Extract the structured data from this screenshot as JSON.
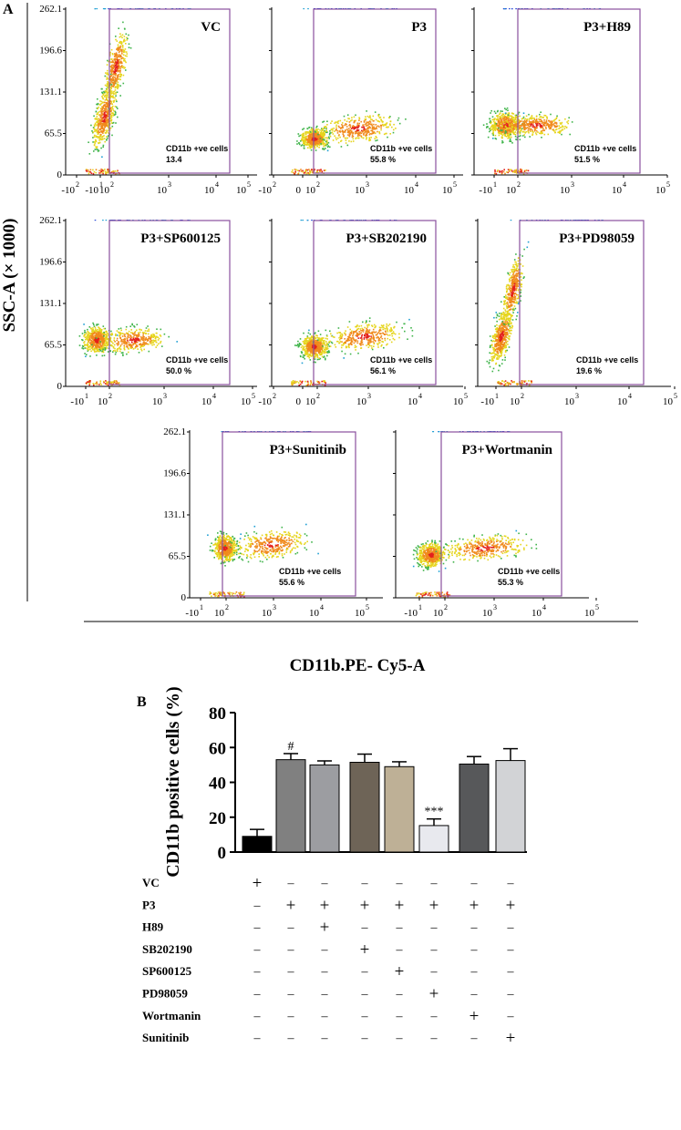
{
  "panel_a": {
    "label": "A",
    "ylabel": "SSC-A (× 1000)",
    "xlabel": "CD11b.PE- Cy5-A",
    "y_ticks": [
      "262.1",
      "196.6",
      "131.1",
      "65.5",
      "0"
    ],
    "gate_caption": "CD11b +ve cells",
    "plots": [
      {
        "name": "VC",
        "value": "13.4",
        "ticks": [
          "-10 2",
          "-10 1",
          "10 2",
          "10 3",
          "10 4",
          "10 5"
        ],
        "colors": {
          "gate": "#8a4f9e"
        }
      },
      {
        "name": "P3",
        "value": "55.8 %",
        "ticks": [
          "-10 2",
          "0",
          "10 2",
          "10 3",
          "10 4",
          "10 5"
        ]
      },
      {
        "name": "P3+H89",
        "value": "51.5 %",
        "ticks": [
          "-10 1",
          "10 2",
          "10 3",
          "10 4",
          "10 5"
        ]
      },
      {
        "name": "P3+SP600125",
        "value": "50.0 %",
        "ticks": [
          "-10 1",
          "10 2",
          "10 3",
          "10 4",
          "10 5"
        ]
      },
      {
        "name": "P3+SB202190",
        "value": "56.1 %",
        "ticks": [
          "-10 2",
          "0",
          "10 2",
          "10 3",
          "10 4",
          "10 5"
        ]
      },
      {
        "name": "P3+PD98059",
        "value": "19.6 %",
        "ticks": [
          "-10 1",
          "10 2",
          "10 3",
          "10 4",
          "10 5"
        ]
      },
      {
        "name": "P3+Sunitinib",
        "value": "55.6 %",
        "ticks": [
          "-10 1",
          "10 2",
          "10 3",
          "10 4",
          "10 5"
        ]
      },
      {
        "name": "P3+Wortmanin",
        "value": "55.3 %",
        "ticks": [
          "-10 1",
          "10 2",
          "10 3",
          "10 4",
          "10 5"
        ]
      }
    ]
  },
  "chart_data": {
    "type": "bar",
    "panel_label": "B",
    "title": "",
    "xlabel": "",
    "ylabel": "CD11b positive cells (%)",
    "ylim": [
      0,
      80
    ],
    "yticks": [
      0,
      20,
      40,
      60,
      80
    ],
    "grid": false,
    "values": [
      9.0,
      53.0,
      50.0,
      51.5,
      49.0,
      15.2,
      50.5,
      52.5
    ],
    "errors": [
      4.0,
      3.5,
      2.3,
      4.7,
      2.8,
      3.8,
      4.3,
      6.8
    ],
    "colors": [
      "#000000",
      "#808080",
      "#9c9da1",
      "#6e6457",
      "#beb096",
      "#e8e9ee",
      "#57585a",
      "#d2d3d6"
    ],
    "annotations": [
      "",
      "#",
      "",
      "",
      "",
      "***",
      "",
      ""
    ],
    "treatment_table": {
      "rows": [
        {
          "label": "VC",
          "marks": [
            "+",
            "–",
            "–",
            "–",
            "–",
            "–",
            "–",
            "–"
          ]
        },
        {
          "label": "P3",
          "marks": [
            "–",
            "+",
            "+",
            "+",
            "+",
            "+",
            "+",
            "+"
          ]
        },
        {
          "label": "H89",
          "marks": [
            "–",
            "–",
            "+",
            "–",
            "–",
            "–",
            "–",
            "–"
          ]
        },
        {
          "label": "SB202190",
          "marks": [
            "–",
            "–",
            "–",
            "+",
            "–",
            "–",
            "–",
            "–"
          ]
        },
        {
          "label": "SP600125",
          "marks": [
            "–",
            "–",
            "–",
            "–",
            "+",
            "–",
            "–",
            "–"
          ]
        },
        {
          "label": "PD98059",
          "marks": [
            "–",
            "–",
            "–",
            "–",
            "–",
            "+",
            "–",
            "–"
          ]
        },
        {
          "label": "Wortmanin",
          "marks": [
            "–",
            "–",
            "–",
            "–",
            "–",
            "–",
            "+",
            "–"
          ]
        },
        {
          "label": "Sunitinib",
          "marks": [
            "–",
            "–",
            "–",
            "–",
            "–",
            "–",
            "–",
            "+"
          ]
        }
      ]
    }
  }
}
